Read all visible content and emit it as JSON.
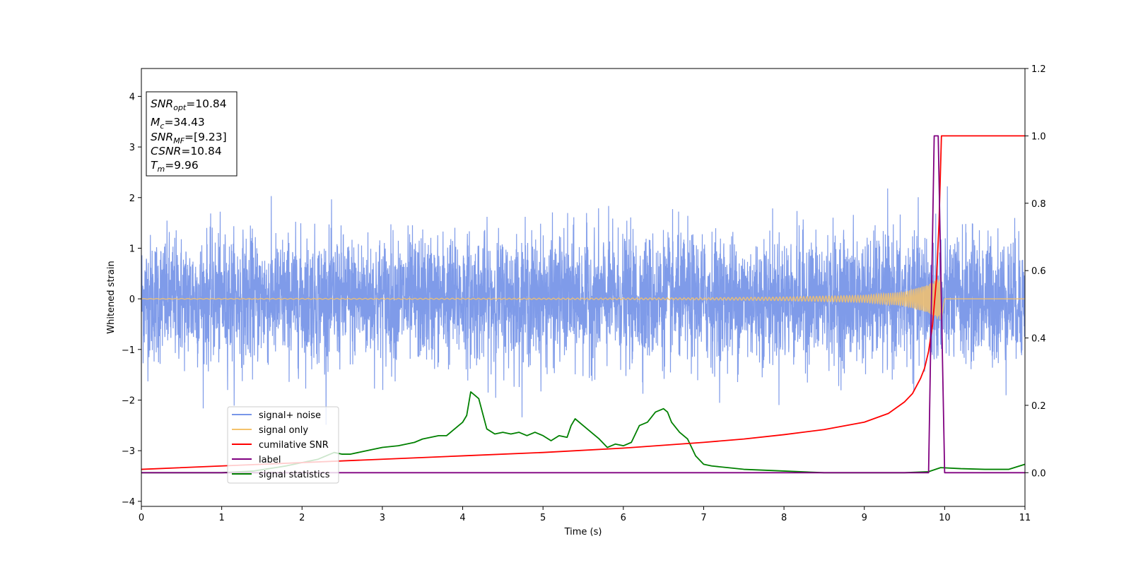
{
  "chart_data": {
    "type": "line",
    "xlabel": "Time (s)",
    "ylabel": "Whitened strain",
    "xlim": [
      0,
      11
    ],
    "ylim": [
      -4.1,
      4.55
    ],
    "y2lim": [
      -0.1,
      1.2
    ],
    "x_ticks": [
      "0",
      "1",
      "2",
      "3",
      "4",
      "5",
      "6",
      "7",
      "8",
      "9",
      "10",
      "11"
    ],
    "y_ticks": [
      "−4",
      "−3",
      "−2",
      "−1",
      "0",
      "1",
      "2",
      "3",
      "4"
    ],
    "y2_ticks": [
      "0.0",
      "0.2",
      "0.4",
      "0.6",
      "0.8",
      "1.0",
      "1.2"
    ],
    "grid": false,
    "legend_placement": "lower-left",
    "annotation": {
      "lines": [
        {
          "sym": "SNR",
          "sub": "opt",
          "value": "=10.84"
        },
        {
          "sym": "M",
          "sub": "c",
          "value": "=34.43"
        },
        {
          "sym": "SNR",
          "sub": "MF",
          "value": "=[9.23]"
        },
        {
          "sym": "CSNR",
          "sub": "",
          "value": "=10.84"
        },
        {
          "sym": "T",
          "sub": "m",
          "value": "=9.96"
        }
      ]
    },
    "series": [
      {
        "name": "signal+ noise",
        "color": "#7896e8",
        "axis": "left",
        "kind": "noise",
        "amplitude_sigma": 0.62
      },
      {
        "name": "signal only",
        "color": "#f5c26b",
        "axis": "left",
        "kind": "chirp",
        "merger_time": 9.96,
        "envelope": {
          "t": [
            0,
            5,
            7,
            8,
            9,
            9.5,
            9.8,
            9.96,
            10.0,
            11
          ],
          "a": [
            0.006,
            0.012,
            0.02,
            0.035,
            0.07,
            0.14,
            0.28,
            0.45,
            0.0,
            0.0
          ]
        }
      },
      {
        "name": "cumilative SNR",
        "color": "#ff0000",
        "axis": "right",
        "kind": "curve",
        "x": [
          0,
          1,
          2,
          3,
          4,
          5,
          6,
          7,
          7.5,
          8,
          8.5,
          9,
          9.3,
          9.5,
          9.6,
          9.7,
          9.75,
          9.8,
          9.85,
          9.9,
          9.93,
          9.96,
          10,
          11
        ],
        "y": [
          0.01,
          0.02,
          0.03,
          0.04,
          0.05,
          0.06,
          0.073,
          0.09,
          0.1,
          0.113,
          0.128,
          0.15,
          0.176,
          0.21,
          0.235,
          0.28,
          0.31,
          0.36,
          0.44,
          0.58,
          0.74,
          1.0,
          1.0,
          1.0
        ]
      },
      {
        "name": "label",
        "color": "#800080",
        "axis": "right",
        "kind": "step",
        "x": [
          0,
          9.8,
          9.87,
          9.92,
          10.0,
          11
        ],
        "y": [
          0.0,
          0.0,
          1.0,
          1.0,
          0.0,
          0.0
        ]
      },
      {
        "name": "signal statistics",
        "color": "#008000",
        "axis": "right",
        "kind": "curve",
        "x": [
          0,
          1.0,
          1.4,
          1.8,
          2.0,
          2.2,
          2.3,
          2.4,
          2.5,
          2.6,
          2.7,
          2.9,
          3.0,
          3.2,
          3.4,
          3.5,
          3.6,
          3.7,
          3.8,
          3.85,
          3.9,
          4.0,
          4.05,
          4.1,
          4.15,
          4.2,
          4.3,
          4.4,
          4.5,
          4.6,
          4.7,
          4.8,
          4.9,
          5.0,
          5.1,
          5.2,
          5.3,
          5.35,
          5.4,
          5.5,
          5.6,
          5.7,
          5.8,
          5.9,
          6.0,
          6.1,
          6.2,
          6.3,
          6.4,
          6.5,
          6.55,
          6.6,
          6.7,
          6.8,
          6.9,
          7.0,
          7.1,
          7.3,
          7.5,
          8.0,
          8.5,
          9.0,
          9.5,
          9.8,
          9.95,
          10.2,
          10.5,
          10.8,
          11.0
        ],
        "y": [
          0.0,
          0.0,
          0.005,
          0.02,
          0.03,
          0.04,
          0.05,
          0.06,
          0.055,
          0.055,
          0.06,
          0.07,
          0.075,
          0.08,
          0.09,
          0.1,
          0.105,
          0.11,
          0.11,
          0.12,
          0.13,
          0.15,
          0.17,
          0.24,
          0.23,
          0.22,
          0.13,
          0.115,
          0.12,
          0.115,
          0.12,
          0.11,
          0.12,
          0.11,
          0.095,
          0.11,
          0.105,
          0.14,
          0.16,
          0.14,
          0.12,
          0.1,
          0.075,
          0.085,
          0.08,
          0.09,
          0.14,
          0.15,
          0.18,
          0.19,
          0.18,
          0.15,
          0.12,
          0.1,
          0.05,
          0.025,
          0.02,
          0.015,
          0.01,
          0.005,
          0.0,
          0.0,
          0.0,
          0.003,
          0.015,
          0.012,
          0.01,
          0.01,
          0.025
        ]
      }
    ]
  }
}
